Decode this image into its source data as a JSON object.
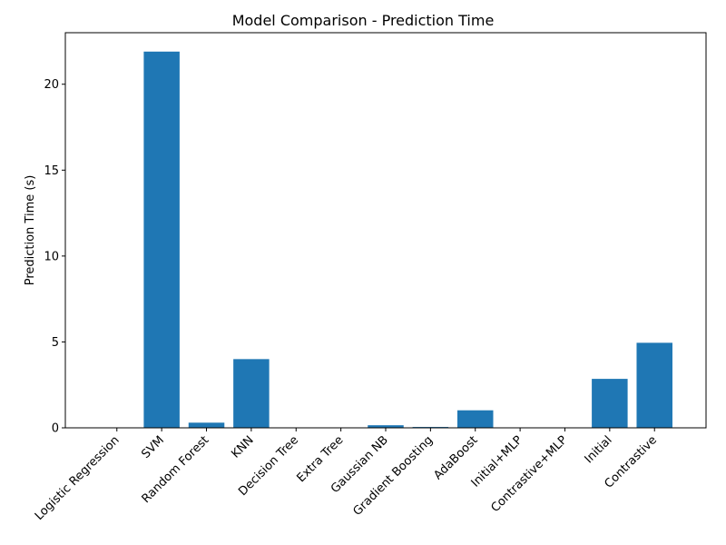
{
  "chart_data": {
    "type": "bar",
    "title": "Model Comparison - Prediction Time",
    "xlabel": "",
    "ylabel": "Prediction Time (s)",
    "categories": [
      "Logistic Regression",
      "SVM",
      "Random Forest",
      "KNN",
      "Decision Tree",
      "Extra Tree",
      "Gaussian NB",
      "Gradient Boosting",
      "AdaBoost",
      "Initial+MLP",
      "Contrastive+MLP",
      "Initial",
      "Contrastive"
    ],
    "values": [
      0.005,
      21.9,
      0.3,
      4.0,
      0.01,
      0.01,
      0.15,
      0.05,
      1.02,
      0.005,
      0.005,
      2.85,
      4.95
    ],
    "ylim": [
      0,
      23.0
    ],
    "yticks": [
      0,
      5,
      10,
      15,
      20
    ],
    "bar_color": "#1f77b4",
    "grid": false,
    "legend": "none"
  }
}
